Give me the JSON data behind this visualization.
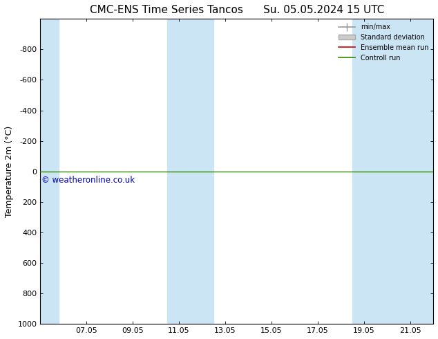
{
  "title": "CMC-ENS Time Series Tancos      Su. 05.05.2024 15 UTC",
  "ylabel": "Temperature 2m (°C)",
  "xtick_labels": [
    "07.05",
    "09.05",
    "11.05",
    "13.05",
    "15.05",
    "17.05",
    "19.05",
    "21.05"
  ],
  "xtick_positions": [
    2,
    4,
    6,
    8,
    10,
    12,
    14,
    16
  ],
  "xlim": [
    0,
    17
  ],
  "ylim": [
    -1000,
    1000
  ],
  "yticks": [
    -800,
    -600,
    -400,
    -200,
    0,
    200,
    400,
    600,
    800,
    1000
  ],
  "shaded_columns": [
    {
      "x_start": 0,
      "x_end": 0.8
    },
    {
      "x_start": 5.5,
      "x_end": 7.5
    },
    {
      "x_start": 13.5,
      "x_end": 17.0
    }
  ],
  "control_run_y": 0,
  "watermark": "© weatheronline.co.uk",
  "watermark_color": "#0000bb",
  "background_color": "#ffffff",
  "plot_bg_color": "#ffffff",
  "shaded_color": "#cce5f5",
  "control_run_color": "#338800",
  "ensemble_mean_color": "#cc0000",
  "std_dev_color": "#cccccc",
  "min_max_color": "#999999",
  "legend_entries": [
    "min/max",
    "Standard deviation",
    "Ensemble mean run",
    "Controll run"
  ],
  "title_fontsize": 11,
  "axis_label_fontsize": 9
}
